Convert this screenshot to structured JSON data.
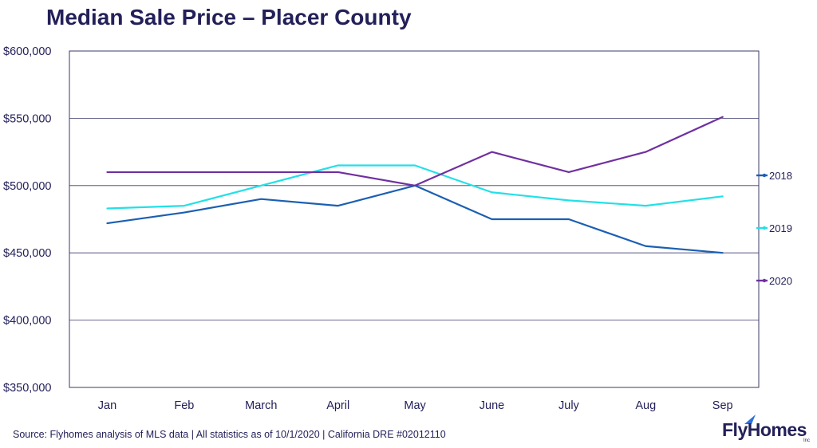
{
  "chart_data": {
    "type": "line",
    "title": "Median Sale Price – Placer County",
    "categories": [
      "Jan",
      "Feb",
      "March",
      "April",
      "May",
      "June",
      "July",
      "Aug",
      "Sep"
    ],
    "yticks": [
      "$350,000",
      "$400,000",
      "$450,000",
      "$500,000",
      "$550,000",
      "$600,000"
    ],
    "ylim": [
      350000,
      600000
    ],
    "grid": true,
    "legend_position": "right",
    "series": [
      {
        "name": "2018",
        "color": "#1b5fb3",
        "values": [
          472000,
          480000,
          490000,
          485000,
          500000,
          475000,
          475000,
          455000,
          450000
        ]
      },
      {
        "name": "2019",
        "color": "#22e0e8",
        "values": [
          483000,
          485000,
          500000,
          515000,
          515000,
          495000,
          489000,
          485000,
          492000
        ]
      },
      {
        "name": "2020",
        "color": "#7030a0",
        "values": [
          510000,
          510000,
          510000,
          510000,
          500000,
          525000,
          510000,
          525000,
          551000
        ]
      }
    ]
  },
  "footer": {
    "source": "Source: Flyhomes analysis of MLS data | All statistics as of 10/1/2020 | California DRE #02012110",
    "logo_text": "FlyHomes",
    "logo_suffix": "Inc"
  }
}
